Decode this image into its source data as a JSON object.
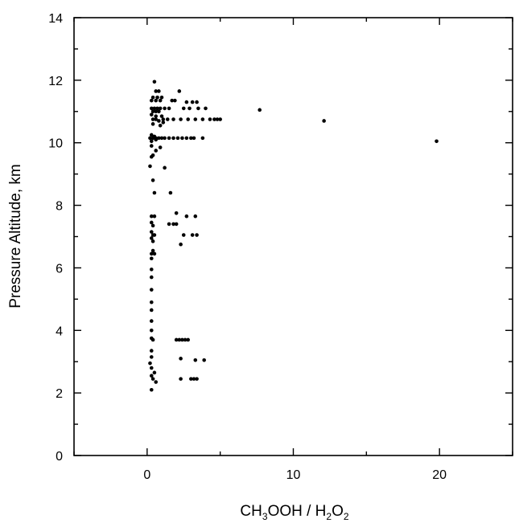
{
  "chart_data": {
    "type": "scatter",
    "title": "",
    "xlabel": {
      "parts": [
        "CH",
        "3",
        "OOH / H",
        "2",
        "O",
        "2"
      ]
    },
    "ylabel": "Pressure Altitude, km",
    "xlim": [
      -5,
      25
    ],
    "ylim": [
      0,
      14
    ],
    "x_ticks": [
      0,
      10,
      20
    ],
    "x_tick_labels": [
      "0",
      "10",
      "20"
    ],
    "y_ticks": [
      0,
      2,
      4,
      6,
      8,
      10,
      12,
      14
    ],
    "y_tick_labels": [
      "0",
      "2",
      "4",
      "6",
      "8",
      "10",
      "12",
      "14"
    ],
    "grid": false,
    "legend": "none",
    "marker_color": "#000000",
    "series": [
      {
        "points": [
          [
            0.5,
            11.95
          ],
          [
            0.6,
            11.65
          ],
          [
            0.8,
            11.65
          ],
          [
            2.2,
            11.65
          ],
          [
            0.4,
            11.45
          ],
          [
            0.7,
            11.45
          ],
          [
            1.0,
            11.45
          ],
          [
            0.3,
            11.35
          ],
          [
            0.6,
            11.35
          ],
          [
            0.9,
            11.35
          ],
          [
            1.7,
            11.35
          ],
          [
            1.9,
            11.35
          ],
          [
            2.7,
            11.3
          ],
          [
            3.1,
            11.3
          ],
          [
            3.4,
            11.3
          ],
          [
            0.3,
            11.1
          ],
          [
            0.5,
            11.1
          ],
          [
            0.7,
            11.1
          ],
          [
            0.9,
            11.1
          ],
          [
            1.2,
            11.1
          ],
          [
            1.5,
            11.1
          ],
          [
            2.5,
            11.1
          ],
          [
            2.9,
            11.1
          ],
          [
            3.5,
            11.1
          ],
          [
            4.0,
            11.1
          ],
          [
            0.4,
            11.0
          ],
          [
            0.6,
            11.0
          ],
          [
            0.8,
            11.0
          ],
          [
            7.7,
            11.05
          ],
          [
            0.3,
            10.9
          ],
          [
            0.6,
            10.85
          ],
          [
            1.0,
            10.85
          ],
          [
            0.4,
            10.75
          ],
          [
            0.6,
            10.75
          ],
          [
            0.8,
            10.7
          ],
          [
            1.1,
            10.75
          ],
          [
            1.4,
            10.75
          ],
          [
            1.8,
            10.75
          ],
          [
            2.3,
            10.75
          ],
          [
            2.8,
            10.75
          ],
          [
            3.3,
            10.75
          ],
          [
            3.8,
            10.75
          ],
          [
            4.3,
            10.75
          ],
          [
            4.6,
            10.75
          ],
          [
            4.8,
            10.75
          ],
          [
            5.0,
            10.75
          ],
          [
            12.1,
            10.7
          ],
          [
            0.4,
            10.6
          ],
          [
            1.1,
            10.65
          ],
          [
            0.9,
            10.55
          ],
          [
            0.3,
            10.25
          ],
          [
            0.5,
            10.2
          ],
          [
            0.2,
            10.15
          ],
          [
            0.4,
            10.15
          ],
          [
            0.6,
            10.15
          ],
          [
            0.8,
            10.15
          ],
          [
            1.0,
            10.15
          ],
          [
            1.2,
            10.15
          ],
          [
            1.5,
            10.15
          ],
          [
            1.8,
            10.15
          ],
          [
            2.1,
            10.15
          ],
          [
            2.4,
            10.15
          ],
          [
            2.7,
            10.15
          ],
          [
            3.0,
            10.15
          ],
          [
            3.2,
            10.15
          ],
          [
            3.8,
            10.15
          ],
          [
            0.3,
            10.05
          ],
          [
            0.6,
            10.1
          ],
          [
            19.8,
            10.05
          ],
          [
            0.3,
            9.9
          ],
          [
            0.9,
            9.85
          ],
          [
            0.6,
            9.75
          ],
          [
            0.4,
            9.6
          ],
          [
            0.3,
            9.55
          ],
          [
            0.2,
            9.25
          ],
          [
            1.2,
            9.2
          ],
          [
            0.4,
            8.8
          ],
          [
            0.5,
            8.4
          ],
          [
            1.6,
            8.4
          ],
          [
            2.0,
            7.75
          ],
          [
            0.3,
            7.65
          ],
          [
            0.5,
            7.65
          ],
          [
            2.7,
            7.65
          ],
          [
            3.3,
            7.65
          ],
          [
            0.3,
            7.45
          ],
          [
            1.5,
            7.4
          ],
          [
            1.8,
            7.4
          ],
          [
            2.0,
            7.4
          ],
          [
            0.4,
            7.35
          ],
          [
            0.3,
            7.15
          ],
          [
            0.4,
            7.05
          ],
          [
            0.5,
            7.05
          ],
          [
            2.5,
            7.05
          ],
          [
            3.1,
            7.05
          ],
          [
            3.4,
            7.05
          ],
          [
            0.3,
            6.95
          ],
          [
            0.4,
            6.85
          ],
          [
            2.3,
            6.75
          ],
          [
            0.4,
            6.55
          ],
          [
            0.3,
            6.45
          ],
          [
            0.5,
            6.45
          ],
          [
            0.3,
            6.3
          ],
          [
            0.3,
            5.95
          ],
          [
            0.3,
            5.7
          ],
          [
            0.3,
            5.3
          ],
          [
            0.3,
            4.9
          ],
          [
            0.3,
            4.65
          ],
          [
            0.3,
            4.3
          ],
          [
            0.3,
            4.0
          ],
          [
            0.3,
            3.75
          ],
          [
            0.4,
            3.7
          ],
          [
            2.0,
            3.7
          ],
          [
            2.2,
            3.7
          ],
          [
            2.4,
            3.7
          ],
          [
            2.6,
            3.7
          ],
          [
            2.8,
            3.7
          ],
          [
            0.3,
            3.35
          ],
          [
            0.3,
            3.15
          ],
          [
            2.3,
            3.1
          ],
          [
            3.3,
            3.05
          ],
          [
            3.9,
            3.05
          ],
          [
            0.2,
            2.95
          ],
          [
            0.3,
            2.8
          ],
          [
            0.5,
            2.65
          ],
          [
            0.3,
            2.55
          ],
          [
            0.4,
            2.45
          ],
          [
            2.3,
            2.45
          ],
          [
            3.0,
            2.45
          ],
          [
            3.2,
            2.45
          ],
          [
            3.4,
            2.45
          ],
          [
            0.6,
            2.35
          ],
          [
            0.3,
            2.1
          ]
        ]
      }
    ]
  }
}
